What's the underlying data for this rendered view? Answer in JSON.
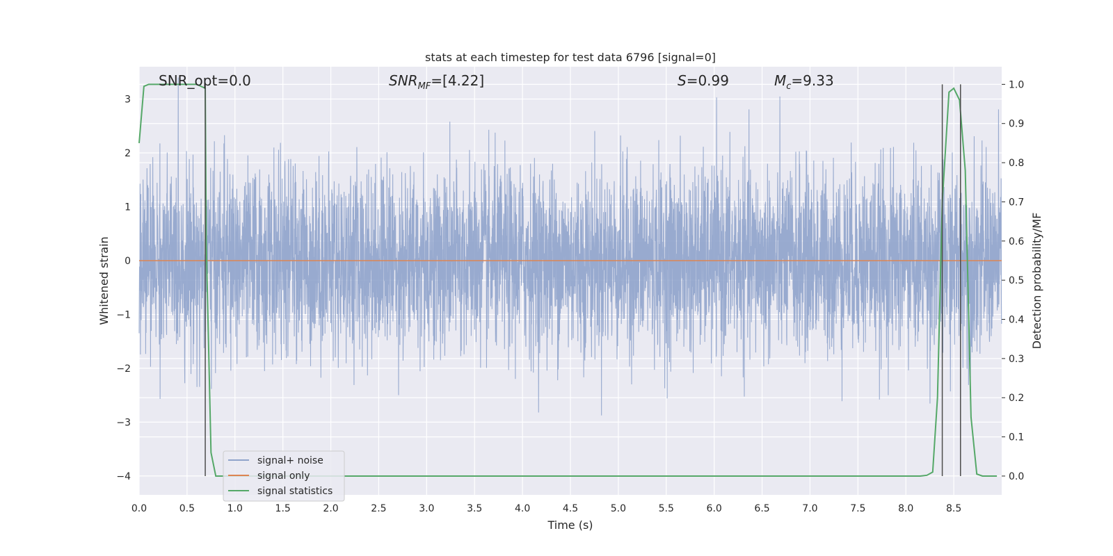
{
  "chart_data": {
    "type": "line",
    "title": "stats at each timestep for test data 6796 [signal=0]",
    "xlabel": "Time (s)",
    "ylabel": "Whitened strain",
    "ylabel_right": "Detection probability/MF",
    "xlim": [
      0.0,
      9.0
    ],
    "ylim": [
      -4.35,
      3.6
    ],
    "ylim_right": [
      -0.048,
      1.045
    ],
    "xticks": [
      "0.0",
      "0.5",
      "1.0",
      "1.5",
      "2.0",
      "2.5",
      "3.0",
      "3.5",
      "4.0",
      "4.5",
      "5.0",
      "5.5",
      "6.0",
      "6.5",
      "7.0",
      "7.5",
      "8.0",
      "8.5"
    ],
    "yticks": [
      "3",
      "2",
      "1",
      "0",
      "−1",
      "−2",
      "−3",
      "−4"
    ],
    "yticks_right": [
      "1.0",
      "0.9",
      "0.8",
      "0.7",
      "0.6",
      "0.5",
      "0.4",
      "0.3",
      "0.2",
      "0.1",
      "0.0"
    ],
    "grid": true,
    "legend_position": "lower-left",
    "annotations": {
      "snr_opt": "SNR_opt=0.0",
      "snr_mf_label": "SNR",
      "snr_mf_sub": "MF",
      "snr_mf_value": "=[4.22]",
      "s_label": "S",
      "s_value": "=0.99",
      "mc_label": "M",
      "mc_sub": "c",
      "mc_value": "=9.33"
    },
    "series": [
      {
        "name": "signal+ noise",
        "color": "#8fa3cb",
        "description_noise": {
          "typical_abs_max": 1.2,
          "peak_range": [
            -4.0,
            3.4
          ],
          "sample_rate_hz": 512
        }
      },
      {
        "name": "signal only",
        "color": "#dd8452",
        "x": [
          0.0,
          9.0
        ],
        "y": [
          0.0,
          0.0
        ]
      },
      {
        "name": "signal statistics",
        "color": "#55a868",
        "axis": "right",
        "x": [
          0.0,
          0.05,
          0.1,
          0.2,
          0.3,
          0.4,
          0.5,
          0.6,
          0.69,
          0.7,
          0.75,
          0.8,
          1.0,
          2.0,
          3.0,
          4.0,
          5.0,
          6.0,
          7.0,
          8.0,
          8.15,
          8.22,
          8.28,
          8.33,
          8.38,
          8.45,
          8.5,
          8.56,
          8.62,
          8.68,
          8.74,
          8.8,
          8.9,
          8.95
        ],
        "y": [
          0.85,
          0.995,
          1.0,
          1.0,
          1.0,
          1.0,
          1.0,
          1.0,
          0.99,
          0.6,
          0.06,
          0.0,
          0.0,
          0.0,
          0.0,
          0.0,
          0.0,
          0.0,
          0.0,
          0.0,
          0.0,
          0.002,
          0.01,
          0.2,
          0.7,
          0.98,
          0.99,
          0.96,
          0.78,
          0.15,
          0.005,
          0.0,
          0.0,
          0.0
        ]
      }
    ],
    "vertical_lines": {
      "x": [
        0.69,
        8.38,
        8.57
      ],
      "color": "#4d4d4d"
    }
  }
}
